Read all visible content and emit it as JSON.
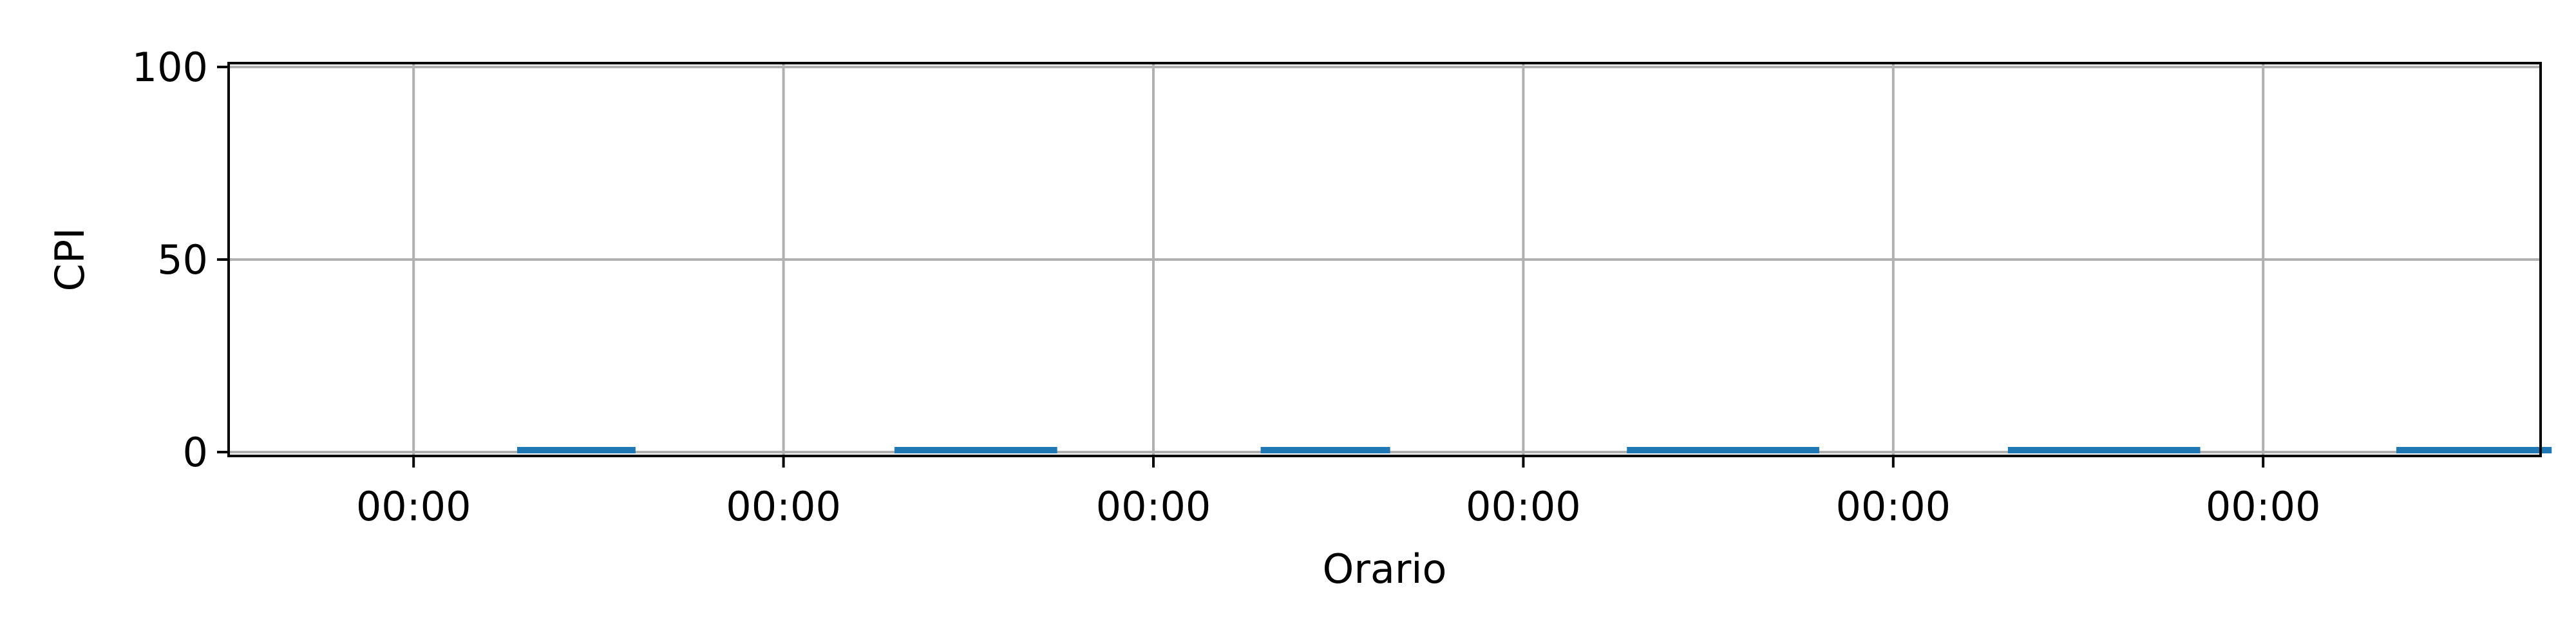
{
  "chart_data": {
    "type": "bar",
    "title": "",
    "xlabel": "Orario",
    "ylabel": "CPI",
    "ylim": [
      0,
      100
    ],
    "yticks": [
      0,
      50,
      100
    ],
    "xticklabels": [
      "00:00",
      "00:00",
      "00:00",
      "00:00",
      "00:00",
      "00:00"
    ],
    "grid": true,
    "series_color": "#1f77b4",
    "bars": [
      {
        "start": 0.28,
        "end": 0.6,
        "value": 0.5
      },
      {
        "start": 1.3,
        "end": 1.74,
        "value": 0.5
      },
      {
        "start": 2.29,
        "end": 2.64,
        "value": 0.5
      },
      {
        "start": 3.28,
        "end": 3.8,
        "value": 0.5
      },
      {
        "start": 4.31,
        "end": 4.83,
        "value": 0.5
      },
      {
        "start": 5.36,
        "end": 5.78,
        "value": 0.5
      }
    ]
  }
}
